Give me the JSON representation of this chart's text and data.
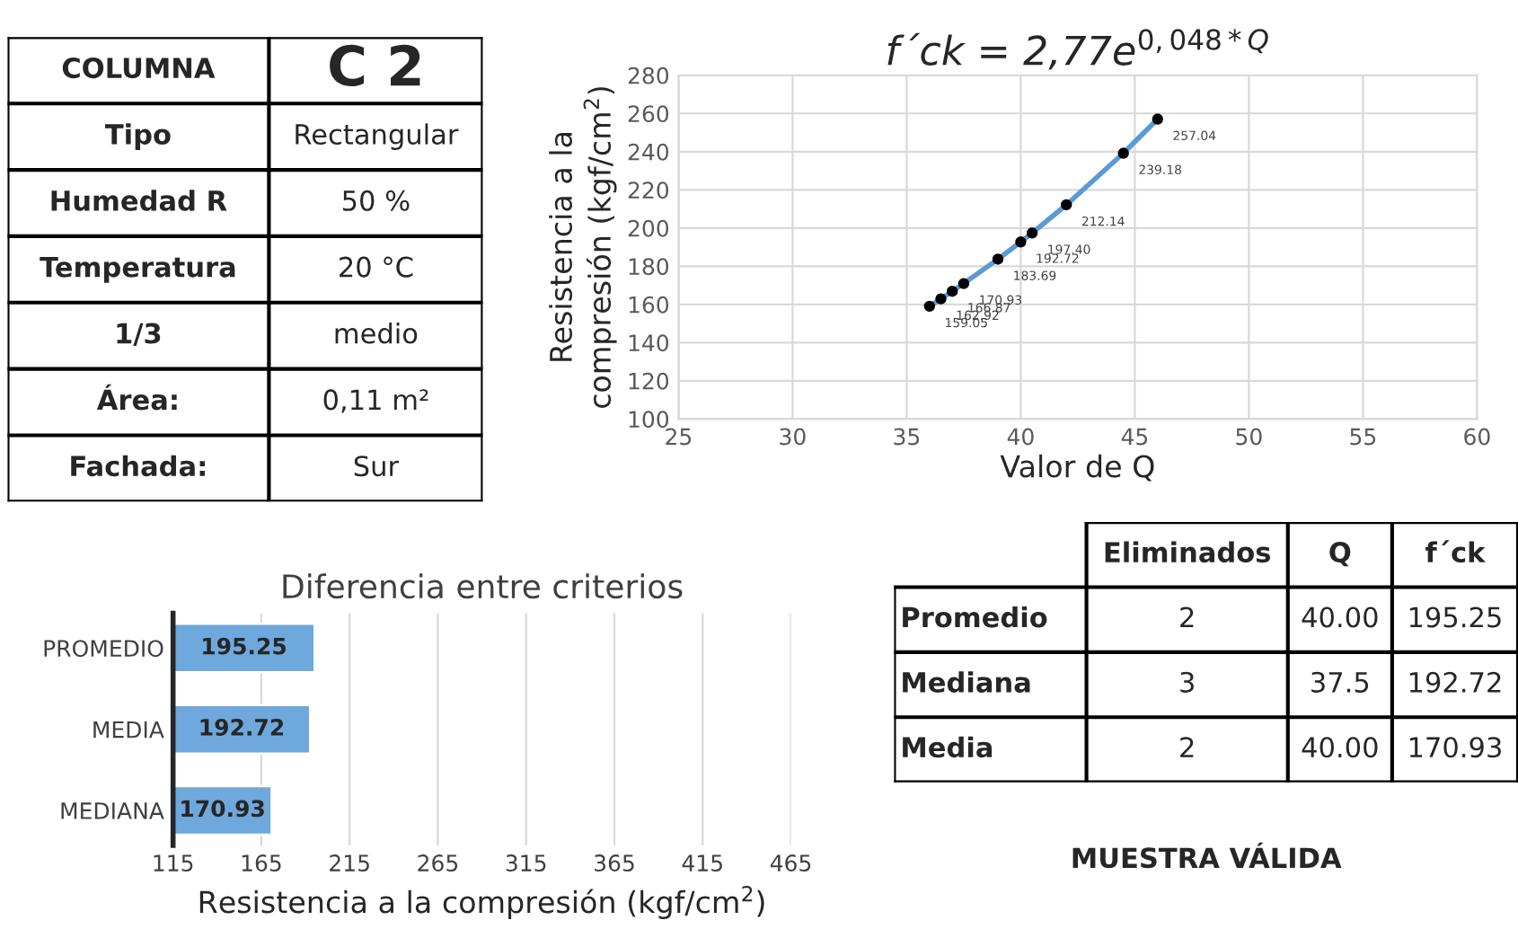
{
  "chart_data": [
    {
      "type": "other",
      "annotations": [
        "COLUMNA",
        "C 2",
        "Tipo",
        "Rectangular",
        "Humedad R",
        "50 %",
        "Temperatura",
        "20 °C",
        "1/3",
        "medio",
        "Área:",
        "0,11 m²",
        "Fachada:",
        "Sur"
      ]
    },
    {
      "type": "scatter",
      "title": "f´ck = 2,77e$^{0,048*Q}$",
      "xlabel": "Valor de Q",
      "ylabel": "Resistencia a la\ncompresión (kgf/cm$^{2}$)",
      "xlim": [
        25,
        60
      ],
      "xticks": [
        25,
        30,
        35,
        40,
        45,
        50,
        55,
        60
      ],
      "ylim": [
        100,
        280
      ],
      "yticks": [
        100,
        120,
        140,
        160,
        180,
        200,
        220,
        240,
        260,
        280
      ],
      "grid": true,
      "legend": false,
      "series": [
        {
          "type": "line",
          "color": "#5b9bd5",
          "marker": "none",
          "x": [
            36.0,
            36.5,
            37.0,
            37.5,
            39.0,
            40.0,
            40.5,
            42.0,
            44.5,
            46.0
          ],
          "values": [
            159.05,
            162.92,
            166.87,
            170.93,
            183.69,
            192.72,
            197.4,
            212.14,
            239.18,
            257.04
          ]
        },
        {
          "type": "scatter",
          "color": "#000000",
          "marker": "circle",
          "x": [
            36.0,
            36.5,
            37.0,
            37.5,
            39.0,
            40.0,
            40.5,
            42.0,
            44.5,
            46.0
          ],
          "values": [
            159.05,
            162.92,
            166.87,
            170.93,
            183.69,
            192.72,
            197.4,
            212.14,
            239.18,
            257.04
          ],
          "value_labels": [
            "159.05",
            "162.92",
            "166.87",
            "170.93",
            "183.69",
            "192.72",
            "197.40",
            "212.14",
            "239.18",
            "257.04"
          ]
        }
      ]
    },
    {
      "type": "bar",
      "orientation": "horizontal",
      "title": "Diferencia entre criterios",
      "xlabel": "Resistencia a la compresión (kgf/cm$^{2}$)",
      "categories": [
        "PROMEDIO",
        "MEDIA",
        "MEDIANA"
      ],
      "values": [
        195.25,
        192.72,
        170.93
      ],
      "color": "#6fa8dc",
      "xlim": [
        115,
        465
      ],
      "xticks": [
        115,
        165,
        215,
        265,
        315,
        365,
        415,
        465
      ],
      "grid": "x",
      "data_labels": true
    },
    {
      "type": "other",
      "annotations": [
        "Eliminados",
        "Q",
        "f´ck",
        "Promedio",
        "2",
        "40.00",
        "195.25",
        "Mediana",
        "3",
        "37.5",
        "192.72",
        "Media",
        "2",
        "40.00",
        "170.93",
        "MUESTRA VÁLIDA"
      ]
    }
  ]
}
